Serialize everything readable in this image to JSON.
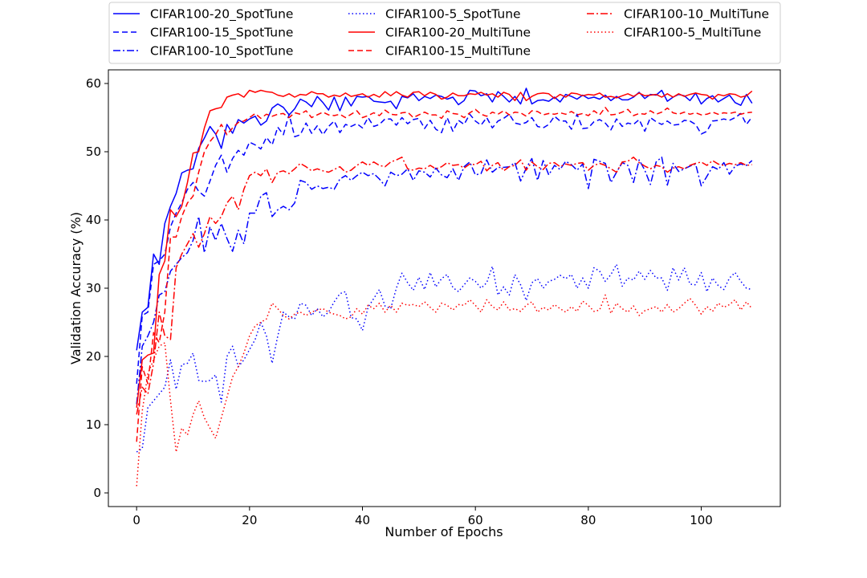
{
  "chart_data": {
    "type": "line",
    "xlabel": "Number of Epochs",
    "ylabel": "Validation Accuracy (%)",
    "xlim": [
      -5,
      114
    ],
    "ylim": [
      -2,
      62
    ],
    "xticks": [
      0,
      20,
      40,
      60,
      80,
      100
    ],
    "yticks": [
      0,
      10,
      20,
      30,
      40,
      50,
      60
    ],
    "grid": false,
    "legend_position": "top, above plot, 3 columns",
    "x": [
      0,
      1,
      2,
      3,
      4,
      5,
      6,
      7,
      8,
      9,
      10,
      11,
      12,
      13,
      14,
      15,
      16,
      17,
      18,
      19,
      20,
      21,
      22,
      23,
      24,
      25,
      26,
      27,
      28,
      29,
      30,
      31,
      32,
      33,
      34,
      35,
      36,
      37,
      38,
      39,
      40,
      41,
      42,
      43,
      44,
      45,
      46,
      47,
      48,
      49,
      50,
      51,
      52,
      53,
      54,
      55,
      56,
      57,
      58,
      59,
      60,
      61,
      62,
      63,
      64,
      65,
      66,
      67,
      68,
      69,
      70,
      71,
      72,
      73,
      74,
      75,
      76,
      77,
      78,
      79,
      80,
      81,
      82,
      83,
      84,
      85,
      86,
      87,
      88,
      89,
      90,
      91,
      92,
      93,
      94,
      95,
      96,
      97,
      98,
      99,
      100,
      101,
      102,
      103,
      104,
      105,
      106,
      107,
      108,
      109
    ],
    "series": [
      {
        "name": "CIFAR100-20_SpotTune",
        "color": "#0000ff",
        "dash": "solid",
        "values": [
          20.9,
          26.5,
          27.2,
          35.0,
          33.5,
          39.5,
          42.0,
          43.9,
          46.9,
          47.3,
          47.5,
          50.5,
          52.0,
          53.7,
          52.6,
          50.5,
          54.0,
          52.7,
          54.7,
          54.2,
          54.8,
          55.2,
          53.9,
          54.5,
          56.4,
          57.0,
          56.5,
          55.4,
          56.3,
          57.7,
          57.3,
          56.6,
          58.1,
          57.2,
          56.1,
          58.0,
          56.0,
          58.0,
          56.7,
          58.1,
          58.0,
          58.1,
          57.4,
          57.3,
          57.2,
          57.4,
          56.3,
          58.1,
          57.9,
          58.5,
          57.5,
          58.1,
          57.8,
          58.3,
          58.1,
          57.7,
          58.0,
          56.9,
          57.5,
          59.0,
          58.9,
          58.2,
          58.5,
          57.3,
          58.8,
          58.1,
          57.3,
          58.1,
          57.0,
          59.3,
          57.0,
          57.5,
          57.6,
          57.4,
          58.0,
          57.3,
          58.4,
          58.1,
          57.7,
          58.3,
          57.8,
          58.0,
          57.7,
          58.3,
          57.5,
          58.1,
          57.6,
          57.6,
          58.0,
          58.7,
          57.8,
          58.4,
          58.3,
          59.0,
          57.4,
          58.0,
          58.4,
          58.2,
          57.5,
          58.6,
          57.0,
          57.8,
          58.2,
          57.3,
          57.8,
          58.3,
          57.2,
          56.8,
          58.4,
          57.1
        ]
      },
      {
        "name": "CIFAR100-15_SpotTune",
        "color": "#0000ff",
        "dash": "dashed",
        "values": [
          16.0,
          26.0,
          26.5,
          33.5,
          34.0,
          35.0,
          39.0,
          41.0,
          42.5,
          44.5,
          45.5,
          44.2,
          43.5,
          45.7,
          48.0,
          49.5,
          47.0,
          49.0,
          50.2,
          49.5,
          51.4,
          51.0,
          50.4,
          52.1,
          51.0,
          53.6,
          52.5,
          55.5,
          52.2,
          52.5,
          54.2,
          52.7,
          53.8,
          52.5,
          53.7,
          54.5,
          52.8,
          54.0,
          53.7,
          54.1,
          53.5,
          55.0,
          53.7,
          54.0,
          54.8,
          54.8,
          53.9,
          55.0,
          54.1,
          54.7,
          54.9,
          53.4,
          54.6,
          53.3,
          52.8,
          55.0,
          53.0,
          54.6,
          54.0,
          55.5,
          54.5,
          53.9,
          55.0,
          53.5,
          54.5,
          54.9,
          55.5,
          54.2,
          54.0,
          54.3,
          55.0,
          53.7,
          53.5,
          54.0,
          55.2,
          54.5,
          54.5,
          53.3,
          55.5,
          53.4,
          53.5,
          54.4,
          54.7,
          54.2,
          53.2,
          54.8,
          53.7,
          54.2,
          54.0,
          54.7,
          53.0,
          55.0,
          54.4,
          54.0,
          54.5,
          53.9,
          54.0,
          54.6,
          54.5,
          54.0,
          52.6,
          53.0,
          54.5,
          54.6,
          54.8,
          54.6,
          55.0,
          55.6,
          54.0,
          55.1
        ]
      },
      {
        "name": "CIFAR100-10_SpotTune",
        "color": "#0000ff",
        "dash": "dashdot",
        "values": [
          13.0,
          21.5,
          23.0,
          25.0,
          29.0,
          29.5,
          32.5,
          33.5,
          34.5,
          35.2,
          37.0,
          40.5,
          35.2,
          39.0,
          37.0,
          39.5,
          37.3,
          35.4,
          38.5,
          36.5,
          41.0,
          41.0,
          43.5,
          44.0,
          40.5,
          41.5,
          42.0,
          41.5,
          42.5,
          45.8,
          45.5,
          44.5,
          45.0,
          44.6,
          44.8,
          44.5,
          46.0,
          46.5,
          45.8,
          46.5,
          47.0,
          46.5,
          46.8,
          46.0,
          45.0,
          47.0,
          46.5,
          46.7,
          47.5,
          45.8,
          47.2,
          47.0,
          46.3,
          47.6,
          46.6,
          46.2,
          47.5,
          45.8,
          47.8,
          48.5,
          46.6,
          46.8,
          48.8,
          47.0,
          47.7,
          47.7,
          47.8,
          48.4,
          45.7,
          47.6,
          49.0,
          45.8,
          48.7,
          46.6,
          48.0,
          47.4,
          48.6,
          48.1,
          47.3,
          48.2,
          44.6,
          48.9,
          48.6,
          48.3,
          45.5,
          47.0,
          48.4,
          48.0,
          45.5,
          48.8,
          47.3,
          45.2,
          48.5,
          49.2,
          45.1,
          48.3,
          47.1,
          47.5,
          47.9,
          48.2,
          45.0,
          46.4,
          47.8,
          47.4,
          48.4,
          46.7,
          47.9,
          48.2,
          48.0,
          48.7
        ]
      },
      {
        "name": "CIFAR100-5_SpotTune",
        "color": "#0000ff",
        "dash": "dotted",
        "values": [
          6.0,
          6.5,
          12.5,
          13.5,
          14.5,
          15.5,
          19.5,
          15.2,
          18.8,
          19.0,
          20.5,
          16.5,
          16.3,
          16.5,
          17.3,
          13.3,
          20.0,
          21.5,
          18.5,
          19.5,
          21.0,
          22.5,
          25.0,
          23.0,
          19.0,
          23.0,
          26.5,
          25.8,
          25.5,
          27.8,
          27.5,
          26.0,
          27.0,
          25.8,
          26.5,
          28.0,
          29.2,
          29.5,
          25.7,
          25.5,
          23.8,
          27.2,
          28.5,
          29.8,
          27.4,
          27.0,
          30.0,
          32.2,
          30.8,
          29.7,
          31.6,
          29.8,
          32.3,
          30.2,
          31.4,
          32.0,
          30.1,
          29.5,
          30.5,
          31.5,
          31.0,
          30.0,
          30.8,
          33.2,
          29.0,
          30.2,
          29.0,
          32.0,
          30.5,
          28.2,
          30.8,
          31.4,
          30.0,
          31.0,
          31.3,
          31.9,
          31.4,
          32.0,
          30.0,
          31.5,
          30.0,
          33.0,
          32.5,
          31.0,
          32.0,
          33.5,
          30.3,
          31.5,
          31.2,
          32.5,
          31.3,
          32.6,
          31.5,
          31.5,
          29.7,
          33.0,
          31.2,
          33.0,
          30.6,
          30.5,
          32.3,
          29.5,
          31.5,
          30.4,
          29.8,
          31.5,
          32.3,
          31.0,
          30.0,
          29.8
        ]
      },
      {
        "name": "CIFAR100-20_MultiTune",
        "color": "#ff0000",
        "dash": "solid",
        "values": [
          12.5,
          19.5,
          20.2,
          20.5,
          32.0,
          34.0,
          41.5,
          40.5,
          42.0,
          45.5,
          49.8,
          50.0,
          53.5,
          56.0,
          56.3,
          56.5,
          58.0,
          58.3,
          58.5,
          58.0,
          59.0,
          58.7,
          59.0,
          58.8,
          58.7,
          58.3,
          58.1,
          58.5,
          58.0,
          58.4,
          58.3,
          58.8,
          58.5,
          58.5,
          58.0,
          58.3,
          58.1,
          58.6,
          58.1,
          58.3,
          58.5,
          58.0,
          58.4,
          58.0,
          58.8,
          58.2,
          58.8,
          58.3,
          58.0,
          58.7,
          58.8,
          58.2,
          58.7,
          58.4,
          57.7,
          58.0,
          58.6,
          58.2,
          58.2,
          58.5,
          58.4,
          58.7,
          58.3,
          58.5,
          58.0,
          58.7,
          58.4,
          57.5,
          58.7,
          57.5,
          58.1,
          58.5,
          58.6,
          58.5,
          57.8,
          58.4,
          58.0,
          58.6,
          58.5,
          58.2,
          58.4,
          58.3,
          58.6,
          58.0,
          58.1,
          57.9,
          58.2,
          58.5,
          58.1,
          58.6,
          58.2,
          58.3,
          58.4,
          58.0,
          58.5,
          58.0,
          58.5,
          58.1,
          58.4,
          58.6,
          58.4,
          58.3,
          57.7,
          58.4,
          58.2,
          58.5,
          58.4,
          58.0,
          58.2,
          58.9
        ]
      },
      {
        "name": "CIFAR100-15_MultiTune",
        "color": "#ff0000",
        "dash": "dashed",
        "values": [
          7.5,
          18.5,
          16.0,
          23.5,
          22.0,
          26.5,
          37.5,
          37.5,
          40.5,
          42.5,
          43.5,
          47.0,
          50.0,
          51.5,
          52.5,
          54.0,
          52.5,
          53.5,
          54.3,
          54.5,
          55.0,
          55.6,
          54.9,
          55.5,
          55.2,
          55.5,
          55.6,
          55.0,
          55.7,
          55.5,
          56.0,
          55.0,
          55.4,
          55.8,
          55.4,
          55.3,
          55.5,
          55.0,
          55.5,
          56.0,
          55.0,
          55.3,
          55.7,
          55.3,
          56.1,
          55.5,
          55.4,
          55.7,
          55.8,
          55.0,
          55.4,
          55.8,
          55.4,
          55.4,
          54.9,
          56.0,
          55.6,
          55.5,
          55.0,
          55.7,
          56.2,
          55.5,
          55.2,
          55.8,
          55.5,
          56.0,
          55.4,
          55.8,
          55.7,
          55.2,
          56.0,
          55.9,
          55.4,
          55.6,
          55.5,
          55.7,
          55.5,
          55.9,
          55.4,
          55.6,
          55.3,
          56.0,
          55.4,
          56.5,
          55.4,
          55.5,
          55.8,
          56.2,
          55.3,
          55.6,
          55.5,
          56.0,
          55.5,
          55.8,
          56.4,
          55.7,
          55.5,
          55.8,
          55.5,
          55.7,
          55.4,
          55.5,
          55.8,
          55.5,
          55.7,
          55.6,
          55.8,
          55.5,
          55.7,
          55.8
        ]
      },
      {
        "name": "CIFAR100-10_MultiTune",
        "color": "#ff0000",
        "dash": "dashdot",
        "values": [
          11.5,
          15.5,
          14.5,
          19.0,
          26.5,
          23.0,
          22.5,
          33.0,
          35.0,
          36.5,
          38.0,
          36.0,
          38.0,
          40.5,
          39.5,
          40.5,
          42.5,
          43.5,
          41.5,
          44.5,
          46.5,
          47.0,
          46.5,
          47.5,
          45.5,
          47.0,
          47.2,
          46.8,
          47.5,
          48.3,
          47.8,
          47.2,
          47.5,
          47.2,
          47.0,
          47.4,
          47.8,
          47.0,
          47.3,
          48.0,
          48.5,
          48.0,
          48.5,
          48.0,
          47.8,
          48.5,
          48.8,
          49.2,
          47.5,
          47.3,
          47.6,
          47.5,
          48.0,
          47.5,
          47.8,
          48.4,
          48.0,
          48.1,
          47.6,
          48.2,
          48.1,
          48.6,
          47.2,
          48.0,
          48.4,
          47.2,
          47.8,
          48.0,
          48.8,
          47.3,
          48.5,
          47.8,
          47.4,
          48.3,
          48.4,
          47.8,
          48.2,
          48.0,
          48.3,
          48.4,
          47.3,
          48.0,
          48.3,
          48.0,
          47.5,
          47.0,
          48.5,
          48.6,
          49.2,
          48.4,
          47.9,
          47.5,
          48.0,
          47.8,
          47.0,
          47.6,
          47.8,
          47.5,
          48.0,
          48.3,
          48.5,
          48.0,
          48.7,
          48.2,
          48.0,
          48.3,
          48.1,
          48.4,
          48.0,
          48.1
        ]
      },
      {
        "name": "CIFAR100-5_MultiTune",
        "color": "#ff0000",
        "dash": "dotted",
        "values": [
          1.0,
          12.0,
          17.5,
          19.5,
          21.5,
          22.0,
          13.5,
          6.0,
          9.5,
          8.5,
          11.5,
          13.5,
          11.0,
          9.5,
          8.0,
          11.0,
          14.0,
          17.0,
          18.5,
          20.5,
          23.0,
          24.5,
          25.0,
          25.5,
          27.8,
          27.0,
          26.0,
          25.5,
          26.2,
          26.5,
          26.0,
          26.5,
          26.8,
          27.0,
          26.5,
          26.2,
          26.0,
          25.5,
          25.8,
          27.0,
          26.2,
          27.5,
          27.0,
          27.8,
          26.5,
          27.5,
          26.5,
          27.8,
          27.5,
          27.6,
          27.3,
          28.0,
          27.2,
          26.5,
          27.8,
          27.5,
          26.8,
          27.6,
          27.5,
          28.3,
          27.5,
          26.5,
          28.3,
          27.3,
          26.8,
          28.0,
          26.8,
          27.0,
          26.6,
          27.5,
          28.0,
          26.5,
          27.2,
          26.8,
          27.6,
          27.0,
          26.5,
          27.3,
          26.6,
          28.1,
          27.5,
          26.6,
          26.8,
          29.0,
          26.3,
          27.8,
          27.0,
          26.5,
          27.4,
          26.0,
          26.7,
          27.0,
          27.3,
          26.5,
          27.6,
          26.5,
          27.0,
          27.8,
          28.5,
          27.5,
          26.2,
          27.3,
          26.6,
          27.8,
          27.2,
          27.6,
          28.3,
          26.8,
          28.0,
          27.0
        ]
      }
    ]
  }
}
